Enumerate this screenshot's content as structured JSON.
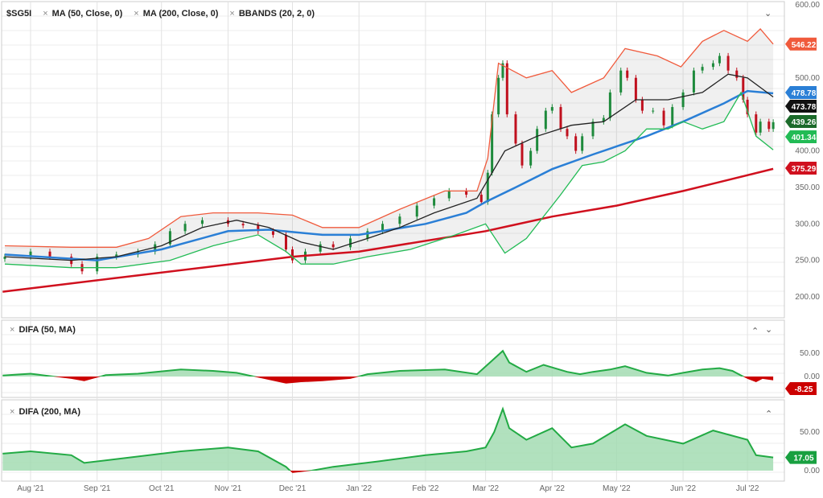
{
  "header": {
    "symbol": "$SG5I",
    "indicators": [
      "MA (50, Close, 0)",
      "MA (200, Close, 0)",
      "BBANDS (20, 2, 0)"
    ]
  },
  "panels": {
    "difa50_title": "DIFA (50, MA)",
    "difa200_title": "DIFA (200, MA)"
  },
  "icons": {
    "remove": "×",
    "collapse": "⌄",
    "move_up": "⌃",
    "move_down": "⌄"
  },
  "colors": {
    "up": "#1e8a3c",
    "down": "#c0101e",
    "ma50": "#2a7fd6",
    "ma200": "#d0101e",
    "bb_mid": "#222222",
    "bb_upper": "#f05a3c",
    "bb_lower": "#22bb55",
    "difa_pos": "#22aa44",
    "difa_neg": "#cc0000"
  },
  "chart_data": [
    {
      "type": "candlestick",
      "title": "$SG5I",
      "ylim": [
        180,
        600
      ],
      "yticks": [
        "600.00",
        "500.00",
        "450.00",
        "400.00",
        "350.00",
        "300.00",
        "250.00",
        "200.00"
      ],
      "xticks": [
        "Aug '21",
        "Sep '21",
        "Oct '21",
        "Nov '21",
        "Dec '21",
        "Jan '22",
        "Feb '22",
        "Mar '22",
        "Apr '22",
        "May '22",
        "Jun '22",
        "Jul '22"
      ],
      "close": [
        [
          "2021-07-20",
          255
        ],
        [
          "2021-08-01",
          262
        ],
        [
          "2021-08-10",
          255
        ],
        [
          "2021-08-20",
          245
        ],
        [
          "2021-08-25",
          235
        ],
        [
          "2021-09-01",
          255
        ],
        [
          "2021-09-10",
          258
        ],
        [
          "2021-09-20",
          262
        ],
        [
          "2021-09-28",
          272
        ],
        [
          "2021-10-05",
          290
        ],
        [
          "2021-10-12",
          300
        ],
        [
          "2021-10-20",
          305
        ],
        [
          "2021-11-01",
          300
        ],
        [
          "2021-11-08",
          298
        ],
        [
          "2021-11-15",
          290
        ],
        [
          "2021-11-22",
          285
        ],
        [
          "2021-11-28",
          265
        ],
        [
          "2021-12-01",
          250
        ],
        [
          "2021-12-07",
          262
        ],
        [
          "2021-12-14",
          272
        ],
        [
          "2021-12-20",
          268
        ],
        [
          "2021-12-28",
          280
        ],
        [
          "2022-01-05",
          290
        ],
        [
          "2022-01-12",
          300
        ],
        [
          "2022-01-20",
          310
        ],
        [
          "2022-01-28",
          325
        ],
        [
          "2022-02-05",
          335
        ],
        [
          "2022-02-12",
          345
        ],
        [
          "2022-02-20",
          340
        ],
        [
          "2022-02-27",
          330
        ],
        [
          "2022-03-02",
          370
        ],
        [
          "2022-03-04",
          450
        ],
        [
          "2022-03-07",
          500
        ],
        [
          "2022-03-09",
          520
        ],
        [
          "2022-03-11",
          450
        ],
        [
          "2022-03-15",
          410
        ],
        [
          "2022-03-18",
          380
        ],
        [
          "2022-03-22",
          400
        ],
        [
          "2022-03-25",
          430
        ],
        [
          "2022-03-29",
          455
        ],
        [
          "2022-04-01",
          460
        ],
        [
          "2022-04-05",
          430
        ],
        [
          "2022-04-08",
          420
        ],
        [
          "2022-04-12",
          400
        ],
        [
          "2022-04-15",
          420
        ],
        [
          "2022-04-20",
          440
        ],
        [
          "2022-04-25",
          445
        ],
        [
          "2022-04-28",
          480
        ],
        [
          "2022-05-03",
          510
        ],
        [
          "2022-05-06",
          500
        ],
        [
          "2022-05-10",
          470
        ],
        [
          "2022-05-13",
          455
        ],
        [
          "2022-05-18",
          455
        ],
        [
          "2022-05-23",
          435
        ],
        [
          "2022-05-27",
          460
        ],
        [
          "2022-06-01",
          480
        ],
        [
          "2022-06-06",
          510
        ],
        [
          "2022-06-10",
          515
        ],
        [
          "2022-06-15",
          520
        ],
        [
          "2022-06-18",
          530
        ],
        [
          "2022-06-22",
          510
        ],
        [
          "2022-06-26",
          500
        ],
        [
          "2022-06-29",
          470
        ],
        [
          "2022-07-01",
          450
        ],
        [
          "2022-07-05",
          425
        ],
        [
          "2022-07-07",
          440
        ],
        [
          "2022-07-11",
          430
        ],
        [
          "2022-07-13",
          439.26
        ]
      ],
      "series": [
        {
          "name": "MA (50, Close, 0)",
          "key": "ma50",
          "last": "478.78",
          "values": [
            [
              "2021-07-20",
              258
            ],
            [
              "2021-09-01",
              250
            ],
            [
              "2021-10-01",
              265
            ],
            [
              "2021-11-01",
              290
            ],
            [
              "2021-11-20",
              292
            ],
            [
              "2021-12-15",
              285
            ],
            [
              "2022-01-01",
              285
            ],
            [
              "2022-02-01",
              300
            ],
            [
              "2022-02-20",
              315
            ],
            [
              "2022-03-01",
              330
            ],
            [
              "2022-03-15",
              350
            ],
            [
              "2022-04-01",
              375
            ],
            [
              "2022-04-20",
              395
            ],
            [
              "2022-05-15",
              420
            ],
            [
              "2022-06-01",
              440
            ],
            [
              "2022-06-20",
              465
            ],
            [
              "2022-07-01",
              482
            ],
            [
              "2022-07-13",
              478.78
            ]
          ]
        },
        {
          "name": "MA (200, Close, 0)",
          "key": "ma200",
          "last": "375.29",
          "values": [
            [
              "2021-07-19",
              207
            ],
            [
              "2021-12-01",
              255
            ],
            [
              "2022-01-01",
              262
            ],
            [
              "2022-03-01",
              290
            ],
            [
              "2022-04-01",
              310
            ],
            [
              "2022-05-01",
              325
            ],
            [
              "2022-06-01",
              345
            ],
            [
              "2022-07-13",
              375.29
            ]
          ]
        },
        {
          "name": "BBANDS mid",
          "key": "bb_mid",
          "last": "473.78",
          "values": [
            [
              "2021-07-20",
              255
            ],
            [
              "2021-08-20",
              250
            ],
            [
              "2021-09-10",
              255
            ],
            [
              "2021-10-01",
              270
            ],
            [
              "2021-10-20",
              295
            ],
            [
              "2021-11-05",
              305
            ],
            [
              "2021-11-20",
              295
            ],
            [
              "2021-12-05",
              275
            ],
            [
              "2021-12-20",
              265
            ],
            [
              "2022-01-05",
              280
            ],
            [
              "2022-01-20",
              295
            ],
            [
              "2022-02-05",
              315
            ],
            [
              "2022-02-25",
              335
            ],
            [
              "2022-03-10",
              400
            ],
            [
              "2022-03-25",
              420
            ],
            [
              "2022-04-10",
              435
            ],
            [
              "2022-04-25",
              440
            ],
            [
              "2022-05-10",
              470
            ],
            [
              "2022-05-25",
              470
            ],
            [
              "2022-06-10",
              480
            ],
            [
              "2022-06-22",
              505
            ],
            [
              "2022-07-01",
              500
            ],
            [
              "2022-07-13",
              473.78
            ]
          ]
        },
        {
          "name": "BBANDS upper",
          "key": "bb_upper",
          "last": "546.22",
          "values": [
            [
              "2021-07-20",
              270
            ],
            [
              "2021-08-20",
              268
            ],
            [
              "2021-09-10",
              268
            ],
            [
              "2021-09-25",
              280
            ],
            [
              "2021-10-10",
              310
            ],
            [
              "2021-10-25",
              315
            ],
            [
              "2021-11-15",
              315
            ],
            [
              "2021-12-01",
              312
            ],
            [
              "2021-12-15",
              295
            ],
            [
              "2022-01-01",
              295
            ],
            [
              "2022-01-20",
              320
            ],
            [
              "2022-02-10",
              345
            ],
            [
              "2022-02-25",
              345
            ],
            [
              "2022-03-02",
              390
            ],
            [
              "2022-03-07",
              520
            ],
            [
              "2022-03-20",
              500
            ],
            [
              "2022-04-01",
              510
            ],
            [
              "2022-04-10",
              480
            ],
            [
              "2022-04-25",
              500
            ],
            [
              "2022-05-05",
              540
            ],
            [
              "2022-05-20",
              530
            ],
            [
              "2022-05-31",
              515
            ],
            [
              "2022-06-10",
              550
            ],
            [
              "2022-06-20",
              565
            ],
            [
              "2022-07-01",
              550
            ],
            [
              "2022-07-07",
              567
            ],
            [
              "2022-07-13",
              546.22
            ]
          ]
        },
        {
          "name": "BBANDS lower",
          "key": "bb_lower",
          "last": "401.34",
          "values": [
            [
              "2021-07-20",
              245
            ],
            [
              "2021-08-20",
              240
            ],
            [
              "2021-09-10",
              240
            ],
            [
              "2021-10-05",
              250
            ],
            [
              "2021-10-25",
              270
            ],
            [
              "2021-11-15",
              285
            ],
            [
              "2021-11-28",
              262
            ],
            [
              "2021-12-05",
              245
            ],
            [
              "2021-12-20",
              245
            ],
            [
              "2022-01-05",
              255
            ],
            [
              "2022-01-25",
              265
            ],
            [
              "2022-02-15",
              285
            ],
            [
              "2022-03-01",
              300
            ],
            [
              "2022-03-10",
              260
            ],
            [
              "2022-03-20",
              280
            ],
            [
              "2022-04-05",
              340
            ],
            [
              "2022-04-15",
              380
            ],
            [
              "2022-04-25",
              385
            ],
            [
              "2022-05-05",
              400
            ],
            [
              "2022-05-15",
              430
            ],
            [
              "2022-05-25",
              430
            ],
            [
              "2022-06-01",
              440
            ],
            [
              "2022-06-10",
              430
            ],
            [
              "2022-06-20",
              440
            ],
            [
              "2022-06-28",
              480
            ],
            [
              "2022-07-05",
              420
            ],
            [
              "2022-07-13",
              401.34
            ]
          ]
        }
      ],
      "last_close": "439.26"
    },
    {
      "type": "area",
      "title": "DIFA (50, MA)",
      "ylim": [
        -20,
        65
      ],
      "yticks": [
        "50.00",
        "0.00"
      ],
      "last": "-8.25",
      "values": [
        [
          "2021-07-19",
          2
        ],
        [
          "2021-08-01",
          6
        ],
        [
          "2021-08-20",
          -5
        ],
        [
          "2021-08-26",
          -10
        ],
        [
          "2021-09-05",
          3
        ],
        [
          "2021-09-20",
          6
        ],
        [
          "2021-10-10",
          15
        ],
        [
          "2021-10-25",
          12
        ],
        [
          "2021-11-05",
          8
        ],
        [
          "2021-11-15",
          -2
        ],
        [
          "2021-11-28",
          -15
        ],
        [
          "2021-12-05",
          -12
        ],
        [
          "2021-12-15",
          -10
        ],
        [
          "2021-12-28",
          -5
        ],
        [
          "2022-01-05",
          5
        ],
        [
          "2022-01-20",
          12
        ],
        [
          "2022-02-10",
          15
        ],
        [
          "2022-02-25",
          5
        ],
        [
          "2022-03-03",
          30
        ],
        [
          "2022-03-09",
          55
        ],
        [
          "2022-03-12",
          30
        ],
        [
          "2022-03-20",
          10
        ],
        [
          "2022-03-28",
          25
        ],
        [
          "2022-04-08",
          10
        ],
        [
          "2022-04-14",
          5
        ],
        [
          "2022-04-20",
          10
        ],
        [
          "2022-04-28",
          15
        ],
        [
          "2022-05-05",
          22
        ],
        [
          "2022-05-15",
          8
        ],
        [
          "2022-05-25",
          2
        ],
        [
          "2022-06-01",
          8
        ],
        [
          "2022-06-10",
          15
        ],
        [
          "2022-06-18",
          18
        ],
        [
          "2022-06-24",
          12
        ],
        [
          "2022-07-01",
          -5
        ],
        [
          "2022-07-05",
          -12
        ],
        [
          "2022-07-08",
          -5
        ],
        [
          "2022-07-13",
          -8.25
        ]
      ]
    },
    {
      "type": "area",
      "title": "DIFA (200, MA)",
      "ylim": [
        -10,
        90
      ],
      "yticks": [
        "50.00",
        "0.00"
      ],
      "last": "17.05",
      "values": [
        [
          "2021-07-19",
          22
        ],
        [
          "2021-08-01",
          25
        ],
        [
          "2021-08-20",
          20
        ],
        [
          "2021-08-26",
          10
        ],
        [
          "2021-09-10",
          15
        ],
        [
          "2021-10-10",
          25
        ],
        [
          "2021-11-01",
          30
        ],
        [
          "2021-11-15",
          25
        ],
        [
          "2021-11-28",
          5
        ],
        [
          "2021-12-01",
          -3
        ],
        [
          "2021-12-10",
          0
        ],
        [
          "2021-12-20",
          5
        ],
        [
          "2022-01-10",
          12
        ],
        [
          "2022-02-01",
          20
        ],
        [
          "2022-02-20",
          25
        ],
        [
          "2022-03-01",
          30
        ],
        [
          "2022-03-05",
          50
        ],
        [
          "2022-03-09",
          80
        ],
        [
          "2022-03-12",
          55
        ],
        [
          "2022-03-20",
          40
        ],
        [
          "2022-04-01",
          55
        ],
        [
          "2022-04-10",
          30
        ],
        [
          "2022-04-20",
          35
        ],
        [
          "2022-05-05",
          60
        ],
        [
          "2022-05-15",
          45
        ],
        [
          "2022-06-01",
          35
        ],
        [
          "2022-06-15",
          52
        ],
        [
          "2022-07-01",
          40
        ],
        [
          "2022-07-05",
          20
        ],
        [
          "2022-07-13",
          17.05
        ]
      ]
    }
  ]
}
